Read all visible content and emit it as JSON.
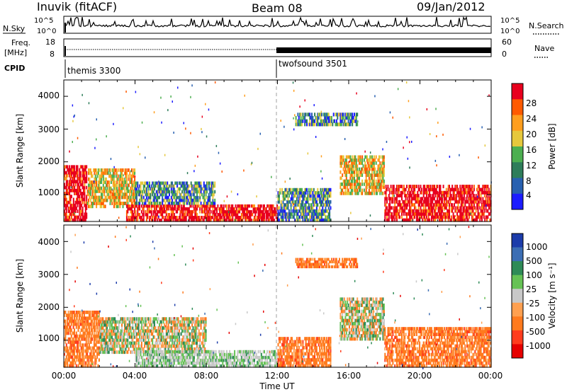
{
  "header": {
    "station": "Inuvik (fitACF)",
    "beam": "Beam 08",
    "date": "09/Jan/2012"
  },
  "summary": {
    "nsky_label": "N.Sky",
    "nsky_ticks": [
      "10^5",
      "10^0"
    ],
    "nsearch_label": "N.Search",
    "nsearch_ticks": [
      "10^5",
      "10^0"
    ],
    "freq_label_1": "Freq.",
    "freq_label_2": "[MHz]",
    "freq_ticks": [
      "18",
      "8"
    ],
    "nave_label": "Nave",
    "nave_ticks": [
      "60",
      "0"
    ],
    "cpid_label": "CPID",
    "cpid_segments": [
      {
        "name": "themis 3300",
        "start_hour": 0
      },
      {
        "name": "twofsound 3501",
        "start_hour": 12
      }
    ]
  },
  "panels": {
    "ylabel": "Slant Range [km]",
    "yticks": [
      "4000",
      "3000",
      "2000",
      "1000"
    ],
    "xticks": [
      "00:00",
      "04:00",
      "08:00",
      "12:00",
      "16:00",
      "20:00",
      "00:00"
    ],
    "xlabel": "Time UT"
  },
  "power_scale": {
    "label": "Power [dB]",
    "ticks": [
      "28",
      "24",
      "20",
      "16",
      "12",
      "8",
      "4"
    ],
    "colors": [
      "#e8001e",
      "#ff5a00",
      "#ff9e1e",
      "#e6c83c",
      "#4caf50",
      "#2e7d5a",
      "#2860b0",
      "#1c1cff"
    ]
  },
  "velocity_scale": {
    "label": "Velocity [m s⁻¹]",
    "ticks": [
      "1000",
      "500",
      "100",
      "25",
      "-25",
      "-100",
      "-500",
      "-1000"
    ],
    "colors": [
      "#1c3caa",
      "#3c6eb4",
      "#2e8b57",
      "#66c255",
      "#c8c8c8",
      "#ffa050",
      "#ff7a1e",
      "#ff3c1e",
      "#e60000"
    ]
  },
  "chart_data": [
    {
      "type": "heatmap",
      "title": "Power",
      "x_range_hours": [
        0,
        24
      ],
      "y_range_km": [
        180,
        4500
      ],
      "colorbar_label": "Power [dB]",
      "colorbar_ticks": [
        28,
        24,
        20,
        16,
        12,
        8,
        4
      ],
      "regions": [
        {
          "t0": 0.0,
          "t1": 1.3,
          "r0": 180,
          "r1": 1900,
          "level": "high"
        },
        {
          "t0": 1.3,
          "t1": 4.0,
          "r0": 600,
          "r1": 1800,
          "level": "medium"
        },
        {
          "t0": 3.5,
          "t1": 12.0,
          "r0": 180,
          "r1": 700,
          "level": "high"
        },
        {
          "t0": 4.0,
          "t1": 8.5,
          "r0": 700,
          "r1": 1400,
          "level": "low"
        },
        {
          "t0": 12.0,
          "t1": 15.0,
          "r0": 180,
          "r1": 1200,
          "level": "low"
        },
        {
          "t0": 13.0,
          "t1": 16.5,
          "r0": 3100,
          "r1": 3500,
          "level": "low"
        },
        {
          "t0": 15.5,
          "t1": 18.0,
          "r0": 1000,
          "r1": 2200,
          "level": "medium"
        },
        {
          "t0": 18.0,
          "t1": 24.0,
          "r0": 180,
          "r1": 1300,
          "level": "high"
        }
      ]
    },
    {
      "type": "heatmap",
      "title": "Velocity",
      "x_range_hours": [
        0,
        24
      ],
      "y_range_km": [
        180,
        4500
      ],
      "colorbar_label": "Velocity [m s-1]",
      "colorbar_ticks": [
        1000,
        500,
        100,
        25,
        -25,
        -100,
        -500,
        -1000
      ],
      "regions": [
        {
          "t0": 0.0,
          "t1": 2.0,
          "r0": 180,
          "r1": 1900,
          "level": "negative"
        },
        {
          "t0": 2.0,
          "t1": 8.0,
          "r0": 600,
          "r1": 1700,
          "level": "mixed"
        },
        {
          "t0": 4.0,
          "t1": 12.0,
          "r0": 180,
          "r1": 700,
          "level": "near-zero"
        },
        {
          "t0": 12.0,
          "t1": 15.0,
          "r0": 180,
          "r1": 1100,
          "level": "negative"
        },
        {
          "t0": 13.0,
          "t1": 16.5,
          "r0": 3200,
          "r1": 3500,
          "level": "negative"
        },
        {
          "t0": 15.5,
          "t1": 18.0,
          "r0": 1000,
          "r1": 2300,
          "level": "mixed"
        },
        {
          "t0": 18.0,
          "t1": 24.0,
          "r0": 180,
          "r1": 1400,
          "level": "negative"
        }
      ]
    }
  ]
}
